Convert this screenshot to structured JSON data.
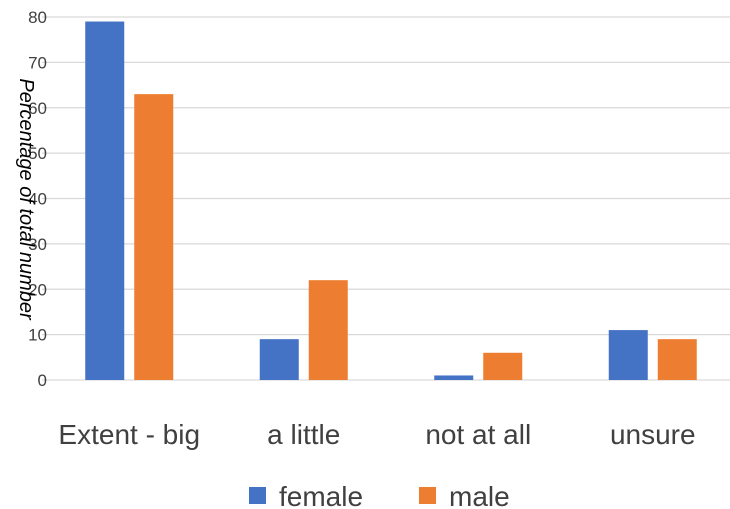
{
  "chart_data": {
    "type": "bar",
    "categories": [
      "Extent - big",
      "a little",
      "not at all",
      "unsure"
    ],
    "series": [
      {
        "name": "female",
        "color": "#4472c4",
        "values": [
          79,
          9,
          1,
          11
        ]
      },
      {
        "name": "male",
        "color": "#ed7d31",
        "values": [
          63,
          22,
          6,
          9
        ]
      }
    ],
    "ylabel": "Percentage of total number",
    "ylim": [
      0,
      80
    ],
    "yticks": [
      0,
      10,
      20,
      30,
      40,
      50,
      60,
      70,
      80
    ],
    "grid": true,
    "legend_position": "bottom"
  }
}
